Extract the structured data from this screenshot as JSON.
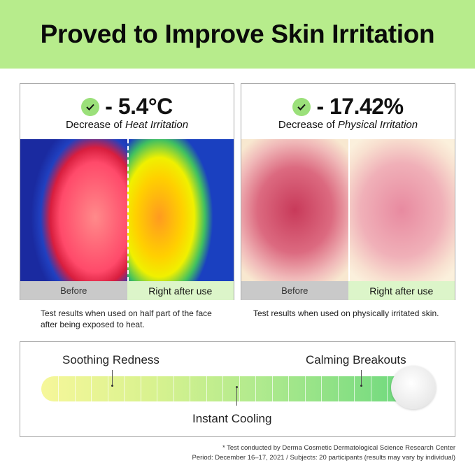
{
  "header": {
    "title": "Proved to Improve Skin Irritation",
    "bg_color": "#b7ec8c"
  },
  "panels": [
    {
      "value": "- 5.4°C",
      "subtitle_prefix": "Decrease of ",
      "subtitle_em": "Heat Irritation",
      "before": "Before",
      "after": "Right after use",
      "caption": "Test results when used on half part of the face after being exposed to heat."
    },
    {
      "value": "- 17.42%",
      "subtitle_prefix": "Decrease of ",
      "subtitle_em": "Physical Irritation",
      "before": "Before",
      "after": "Right after use",
      "caption": "Test results when used on physically irritated skin."
    }
  ],
  "effects": {
    "soothing": "Soothing Redness",
    "cooling": "Instant Cooling",
    "calming": "Calming Breakouts"
  },
  "footnotes": [
    "* Test conducted by Derma Cosmetic Dermatological Science Research Center",
    "Period: December 16–17, 2021 / Subjects: 20 participants (results may vary by individual)"
  ]
}
